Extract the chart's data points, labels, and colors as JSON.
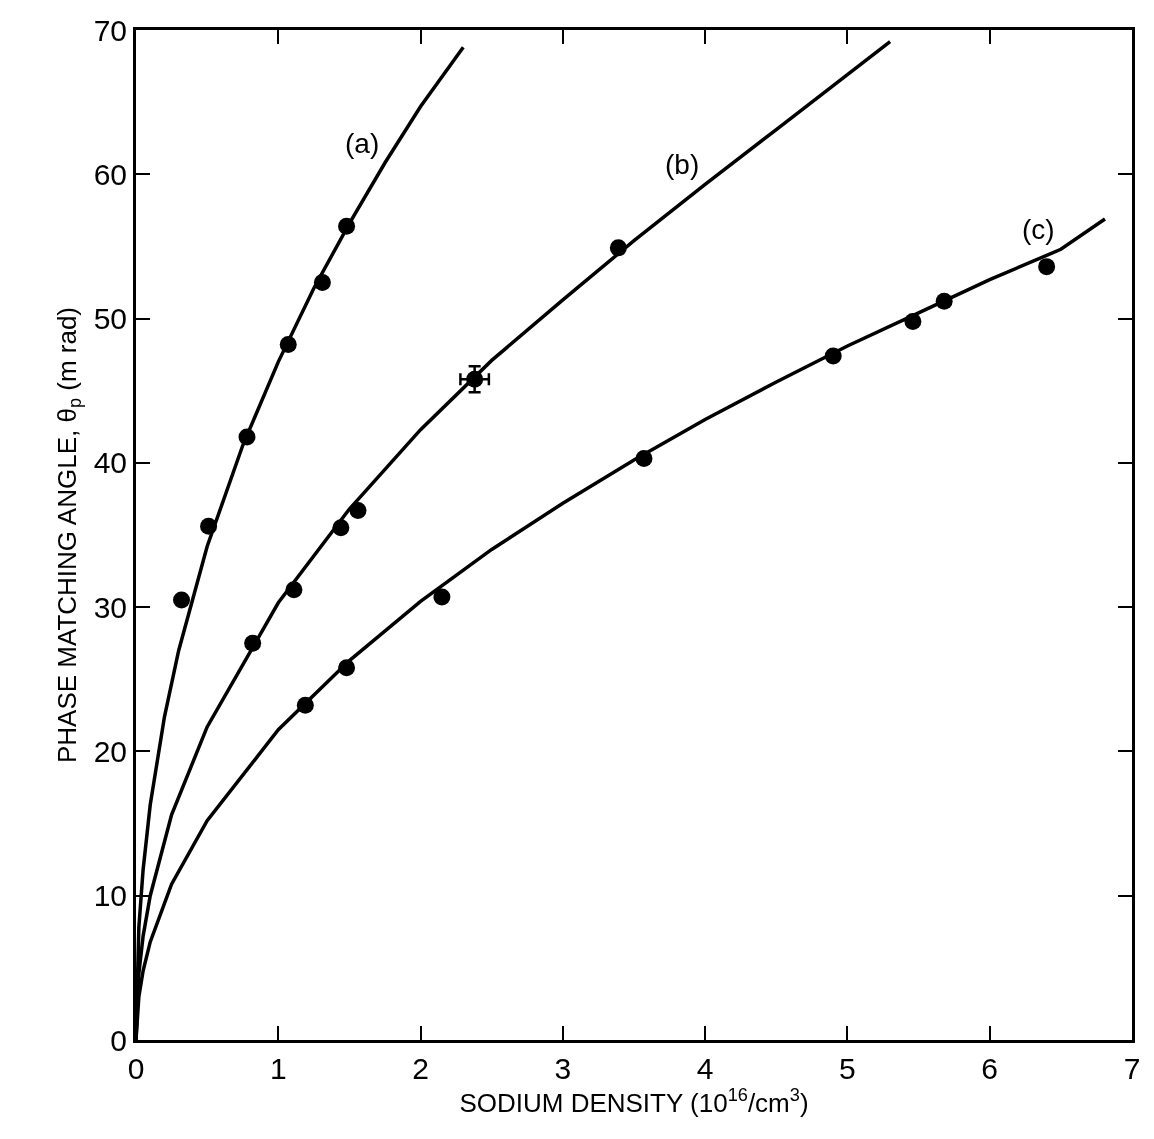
{
  "chart_data": {
    "type": "scatter",
    "xlabel": "SODIUM DENSITY (10$^{16}$/cm$^{3}$)",
    "ylabel": "PHASE MATCHING ANGLE, θ$_{p}$ (m rad)",
    "xlim": [
      0,
      7
    ],
    "xticks": [
      0,
      1,
      2,
      3,
      4,
      5,
      6,
      7
    ],
    "ylim": [
      0,
      70
    ],
    "yticks": [
      0,
      10,
      20,
      30,
      40,
      50,
      60,
      70
    ],
    "grid": false,
    "series": [
      {
        "type": "scatter",
        "marker": "circle",
        "color": "#000000",
        "x": [
          0.32,
          0.51,
          0.78,
          1.07,
          1.31,
          1.48
        ],
        "values": [
          30.5,
          35.6,
          41.8,
          48.2,
          52.5,
          56.4
        ]
      },
      {
        "type": "scatter",
        "marker": "circle",
        "color": "#000000",
        "x": [
          0.82,
          1.11,
          1.44,
          1.56,
          2.38,
          3.39
        ],
        "values": [
          27.5,
          31.2,
          35.5,
          36.7,
          45.8,
          54.9
        ],
        "errors": [
          null,
          null,
          null,
          null,
          0.9,
          null
        ],
        "xerrors": [
          null,
          null,
          null,
          null,
          0.1,
          null
        ]
      },
      {
        "type": "scatter",
        "marker": "circle",
        "color": "#000000",
        "x": [
          1.19,
          1.48,
          2.15,
          3.57,
          4.9,
          5.46,
          5.68,
          6.4
        ],
        "values": [
          23.2,
          25.8,
          30.7,
          40.3,
          47.4,
          49.8,
          51.2,
          53.6
        ]
      },
      {
        "type": "line",
        "marker": "none",
        "line_style": "solid",
        "color": "#000000",
        "x": [
          0,
          0.02,
          0.05,
          0.1,
          0.2,
          0.3,
          0.5,
          0.75,
          1.0,
          1.25,
          1.5,
          1.75,
          2.0,
          2.3
        ],
        "values": [
          0,
          7.8,
          11.8,
          16.3,
          22.4,
          27.0,
          34.2,
          41.2,
          47.0,
          52.1,
          56.6,
          60.8,
          64.7,
          68.8
        ]
      },
      {
        "type": "line",
        "marker": "none",
        "line_style": "solid",
        "color": "#000000",
        "x": [
          0,
          0.02,
          0.05,
          0.1,
          0.25,
          0.5,
          1,
          1.5,
          2,
          2.5,
          3,
          3.5,
          4,
          4.5,
          5,
          5.3
        ],
        "values": [
          0,
          4.6,
          7.2,
          10.0,
          15.6,
          21.7,
          30.3,
          36.8,
          42.3,
          47.1,
          51.3,
          55.4,
          59.3,
          63.1,
          66.9,
          69.2
        ]
      },
      {
        "type": "line",
        "marker": "none",
        "line_style": "solid",
        "color": "#000000",
        "x": [
          0,
          0.02,
          0.05,
          0.1,
          0.25,
          0.5,
          1,
          1.5,
          2,
          2.5,
          3,
          3.5,
          4,
          4.5,
          5,
          5.5,
          6,
          6.5,
          6.81
        ],
        "values": [
          0,
          3.0,
          4.8,
          6.8,
          10.8,
          15.2,
          21.5,
          26.3,
          30.4,
          34.0,
          37.2,
          40.2,
          43.0,
          45.6,
          48.1,
          50.4,
          52.7,
          54.8,
          56.9
        ]
      }
    ],
    "annotations": [
      {
        "text": "(a)",
        "x": 1.75,
        "y": 60.8
      },
      {
        "text": "(b)",
        "x": 4.0,
        "y": 59.3
      },
      {
        "text": "(c)",
        "x": 6.5,
        "y": 54.8
      }
    ]
  }
}
